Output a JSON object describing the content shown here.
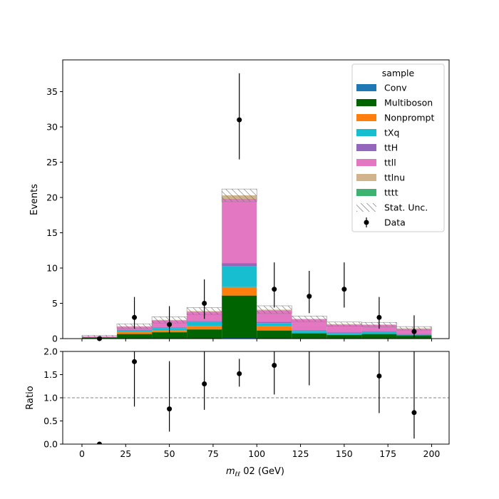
{
  "chart_data": [
    {
      "type": "bar",
      "stacked": true,
      "xlabel": "",
      "ylabel": "Events",
      "xlim": [
        -11,
        210
      ],
      "ylim": [
        0,
        39.5
      ],
      "yticks": [
        0,
        5,
        10,
        15,
        20,
        25,
        30,
        35
      ],
      "bin_edges": [
        0,
        20,
        40,
        60,
        80,
        100,
        120,
        140,
        160,
        180,
        200
      ],
      "series": [
        {
          "name": "Conv",
          "color": "#1f77b4",
          "values": [
            0.05,
            0.05,
            0.05,
            0.05,
            0.1,
            0.05,
            0.05,
            0.05,
            0.05,
            0.05
          ]
        },
        {
          "name": "Multiboson",
          "color": "#006400",
          "values": [
            0.15,
            0.6,
            0.85,
            1.25,
            6.0,
            1.1,
            0.7,
            0.45,
            0.6,
            0.4
          ]
        },
        {
          "name": "Nonprompt",
          "color": "#ff7f0e",
          "values": [
            0.0,
            0.3,
            0.25,
            0.5,
            1.2,
            0.6,
            0.0,
            0.0,
            0.0,
            0.0
          ]
        },
        {
          "name": "tXq",
          "color": "#17becf",
          "values": [
            0.0,
            0.2,
            0.35,
            0.55,
            3.0,
            0.45,
            0.35,
            0.3,
            0.3,
            0.15
          ]
        },
        {
          "name": "ttH",
          "color": "#9467bd",
          "values": [
            0.0,
            0.1,
            0.1,
            0.15,
            0.4,
            0.2,
            0.1,
            0.1,
            0.1,
            0.05
          ]
        },
        {
          "name": "ttll",
          "color": "#e377c2",
          "values": [
            0.1,
            0.45,
            1.0,
            1.3,
            9.1,
            1.6,
            1.55,
            1.1,
            0.9,
            0.75
          ]
        },
        {
          "name": "ttlnu",
          "color": "#d2b48c",
          "values": [
            0.02,
            0.05,
            0.05,
            0.1,
            0.5,
            0.1,
            0.05,
            0.05,
            0.05,
            0.05
          ]
        },
        {
          "name": "tttt",
          "color": "#3cb371",
          "values": [
            0.0,
            0.0,
            0.0,
            0.0,
            0.0,
            0.0,
            0.0,
            0.0,
            0.0,
            0.0
          ]
        }
      ],
      "stat_unc": [
        0.15,
        0.35,
        0.45,
        0.5,
        0.9,
        0.55,
        0.4,
        0.3,
        0.3,
        0.25
      ],
      "data": {
        "x": [
          10,
          30,
          50,
          70,
          90,
          110,
          130,
          150,
          170,
          190
        ],
        "y": [
          0,
          3,
          2,
          5,
          31,
          7,
          6,
          7,
          3,
          1
        ],
        "err_low": [
          0,
          1.6,
          1.3,
          2.2,
          5.6,
          2.6,
          2.4,
          2.6,
          1.6,
          0.8
        ],
        "err_high": [
          0,
          2.9,
          2.6,
          3.4,
          6.6,
          3.8,
          3.6,
          3.8,
          2.9,
          2.3
        ]
      },
      "legend": {
        "title": "sample",
        "position": "top-right",
        "entries": [
          "Conv",
          "Multiboson",
          "Nonprompt",
          "tXq",
          "ttH",
          "ttll",
          "ttlnu",
          "tttt",
          "Stat. Unc.",
          "Data"
        ]
      }
    },
    {
      "type": "scatter",
      "xlabel": "m",
      "xlabel_sub": "ℓℓ",
      "xlabel_rest": " 02 (GeV)",
      "ylabel": "Ratio",
      "xlim": [
        -11,
        210
      ],
      "ylim": [
        0,
        2.0
      ],
      "xticks": [
        0,
        25,
        50,
        75,
        100,
        125,
        150,
        175,
        200
      ],
      "yticks": [
        0.0,
        0.5,
        1.0,
        1.5,
        2.0
      ],
      "reference_line": 1.0,
      "points": {
        "x": [
          10,
          30,
          50,
          70,
          90,
          110,
          130,
          170,
          190
        ],
        "y": [
          0.0,
          1.78,
          0.76,
          1.3,
          1.52,
          1.7,
          2.25,
          1.47,
          0.68
        ],
        "err_low": [
          0.0,
          0.97,
          0.49,
          0.56,
          0.28,
          0.63,
          0.98,
          0.8,
          0.56
        ],
        "err_high": [
          0.0,
          0.97,
          1.03,
          0.88,
          0.32,
          0.94,
          1.6,
          1.5,
          1.55
        ]
      }
    }
  ]
}
